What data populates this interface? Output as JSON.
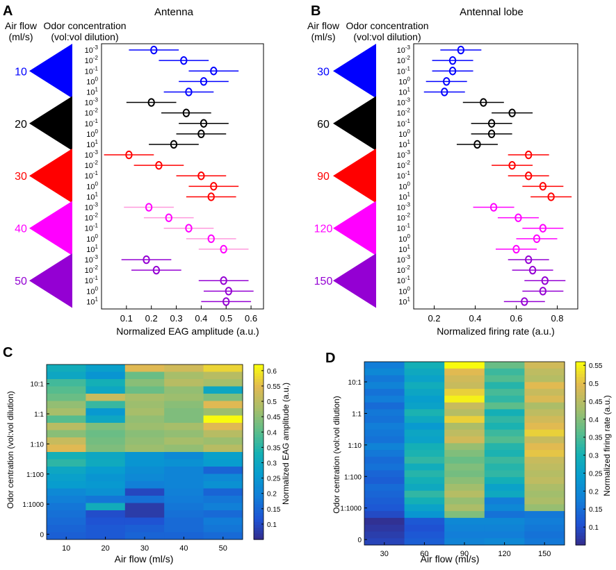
{
  "panel_letters": {
    "a": "A",
    "b": "B",
    "c": "C",
    "d": "D"
  },
  "headers": {
    "airflow_line1": "Air flow",
    "airflow_line2": "(ml/s)",
    "odor_line1": "Odor concentration",
    "odor_line2": "(vol:vol dilution)"
  },
  "colors": {
    "flow1": "#0000ff",
    "flow2": "#000000",
    "flow3": "#ff0000",
    "flow4": "#ff00ff",
    "flow5": "#9400d3",
    "flow4_light": "#ff99dd"
  },
  "conc_labels": [
    "10-3",
    "10-2",
    "10-1",
    "100",
    "101"
  ],
  "conc_base": "10",
  "conc_exponents": [
    "-3",
    "-2",
    "-1",
    "0",
    "1"
  ],
  "chart_data": [
    {
      "id": "A",
      "type": "scatter",
      "title": "Antenna",
      "xlabel": "Normalized EAG amplitude (a.u.)",
      "xlim": [
        0.0,
        0.65
      ],
      "xticks": [
        "0.1",
        "0.2",
        "0.3",
        "0.4",
        "0.5",
        "0.6"
      ],
      "flows": [
        "10",
        "20",
        "30",
        "40",
        "50"
      ],
      "series": [
        {
          "flow": "10",
          "means": [
            0.21,
            0.33,
            0.45,
            0.41,
            0.35
          ],
          "err": [
            0.1,
            0.1,
            0.1,
            0.1,
            0.1
          ]
        },
        {
          "flow": "20",
          "means": [
            0.2,
            0.34,
            0.41,
            0.4,
            0.29
          ],
          "err": [
            0.1,
            0.1,
            0.1,
            0.1,
            0.1
          ]
        },
        {
          "flow": "30",
          "means": [
            0.11,
            0.23,
            0.4,
            0.45,
            0.44
          ],
          "err": [
            0.1,
            0.1,
            0.1,
            0.1,
            0.1
          ]
        },
        {
          "flow": "40",
          "means": [
            0.19,
            0.27,
            0.35,
            0.44,
            0.49
          ],
          "err": [
            0.1,
            0.1,
            0.1,
            0.1,
            0.1
          ]
        },
        {
          "flow": "50",
          "means": [
            0.18,
            0.22,
            0.49,
            0.51,
            0.5
          ],
          "err": [
            0.1,
            0.1,
            0.1,
            0.1,
            0.1
          ]
        }
      ]
    },
    {
      "id": "B",
      "type": "scatter",
      "title": "Antennal lobe",
      "xlabel": "Normalized firing rate (a.u.)",
      "xlim": [
        0.1,
        0.9
      ],
      "xticks": [
        "0.2",
        "0.4",
        "0.6",
        "0.8"
      ],
      "flows": [
        "30",
        "60",
        "90",
        "120",
        "150"
      ],
      "series": [
        {
          "flow": "30",
          "means": [
            0.33,
            0.29,
            0.29,
            0.26,
            0.25
          ],
          "err": [
            0.1,
            0.1,
            0.1,
            0.1,
            0.1
          ]
        },
        {
          "flow": "60",
          "means": [
            0.44,
            0.58,
            0.48,
            0.48,
            0.41
          ],
          "err": [
            0.1,
            0.1,
            0.1,
            0.1,
            0.1
          ]
        },
        {
          "flow": "90",
          "means": [
            0.66,
            0.58,
            0.66,
            0.73,
            0.77
          ],
          "err": [
            0.1,
            0.1,
            0.1,
            0.1,
            0.1
          ]
        },
        {
          "flow": "120",
          "means": [
            0.49,
            0.61,
            0.73,
            0.7,
            0.6
          ],
          "err": [
            0.1,
            0.1,
            0.1,
            0.1,
            0.1
          ]
        },
        {
          "flow": "150",
          "means": [
            0.66,
            0.68,
            0.74,
            0.73,
            0.64
          ],
          "err": [
            0.1,
            0.1,
            0.1,
            0.1,
            0.1
          ]
        }
      ]
    },
    {
      "id": "C",
      "type": "heatmap",
      "xlabel": "Air flow (ml/s)",
      "ylabel": "Odor centration (vol:vol dilution)",
      "colorbar_label": "Normalized EAG amplitude (a.u.)",
      "x_categories": [
        "10",
        "20",
        "30",
        "40",
        "50"
      ],
      "y_tick_labels": [
        "10:1",
        "1:1",
        "1:10",
        "1:100",
        "1:1000",
        "0"
      ],
      "clim": [
        0.05,
        0.62
      ],
      "colorbar_ticks": [
        "0.1",
        "0.15",
        "0.2",
        "0.25",
        "0.3",
        "0.35",
        "0.4",
        "0.45",
        "0.5",
        "0.55",
        "0.6"
      ],
      "values": [
        [
          0.32,
          0.28,
          0.55,
          0.53,
          0.58
        ],
        [
          0.3,
          0.25,
          0.42,
          0.48,
          0.5
        ],
        [
          0.38,
          0.33,
          0.45,
          0.5,
          0.48
        ],
        [
          0.4,
          0.3,
          0.42,
          0.46,
          0.3
        ],
        [
          0.42,
          0.52,
          0.48,
          0.47,
          0.44
        ],
        [
          0.46,
          0.37,
          0.47,
          0.45,
          0.55
        ],
        [
          0.48,
          0.26,
          0.48,
          0.44,
          0.47
        ],
        [
          0.4,
          0.3,
          0.46,
          0.44,
          0.62
        ],
        [
          0.5,
          0.44,
          0.47,
          0.48,
          0.55
        ],
        [
          0.45,
          0.42,
          0.45,
          0.46,
          0.5
        ],
        [
          0.52,
          0.43,
          0.46,
          0.48,
          0.47
        ],
        [
          0.55,
          0.44,
          0.47,
          0.46,
          0.5
        ],
        [
          0.33,
          0.3,
          0.25,
          0.22,
          0.28
        ],
        [
          0.36,
          0.31,
          0.25,
          0.24,
          0.27
        ],
        [
          0.3,
          0.27,
          0.23,
          0.21,
          0.15
        ],
        [
          0.28,
          0.25,
          0.22,
          0.21,
          0.22
        ],
        [
          0.27,
          0.26,
          0.2,
          0.21,
          0.24
        ],
        [
          0.22,
          0.24,
          0.1,
          0.2,
          0.15
        ],
        [
          0.2,
          0.18,
          0.17,
          0.19,
          0.18
        ],
        [
          0.18,
          0.32,
          0.08,
          0.18,
          0.2
        ],
        [
          0.17,
          0.11,
          0.08,
          0.17,
          0.16
        ],
        [
          0.16,
          0.12,
          0.12,
          0.16,
          0.19
        ],
        [
          0.15,
          0.13,
          0.14,
          0.16,
          0.18
        ],
        [
          0.14,
          0.13,
          0.15,
          0.15,
          0.16
        ]
      ]
    },
    {
      "id": "D",
      "type": "heatmap",
      "xlabel": "Air flow (ml/s)",
      "ylabel": "Odor centration (vol:vol dilution)",
      "colorbar_label": "Normalized firing rate (a.u.)",
      "x_categories": [
        "30",
        "60",
        "90",
        "120",
        "150"
      ],
      "y_tick_labels": [
        "10:1",
        "1:1",
        "1:10",
        "1:100",
        "1:1000",
        "0"
      ],
      "clim": [
        0.05,
        0.56
      ],
      "colorbar_ticks": [
        "0.1",
        "0.15",
        "0.2",
        "0.25",
        "0.3",
        "0.35",
        "0.4",
        "0.45",
        "0.5",
        "0.55"
      ],
      "values": [
        [
          0.18,
          0.3,
          0.56,
          0.38,
          0.48
        ],
        [
          0.2,
          0.28,
          0.5,
          0.34,
          0.46
        ],
        [
          0.17,
          0.26,
          0.48,
          0.36,
          0.45
        ],
        [
          0.19,
          0.29,
          0.47,
          0.32,
          0.5
        ],
        [
          0.16,
          0.27,
          0.52,
          0.35,
          0.47
        ],
        [
          0.18,
          0.25,
          0.55,
          0.33,
          0.49
        ],
        [
          0.15,
          0.26,
          0.47,
          0.37,
          0.44
        ],
        [
          0.17,
          0.31,
          0.45,
          0.3,
          0.46
        ],
        [
          0.16,
          0.28,
          0.52,
          0.33,
          0.48
        ],
        [
          0.18,
          0.24,
          0.44,
          0.31,
          0.5
        ],
        [
          0.17,
          0.27,
          0.46,
          0.34,
          0.52
        ],
        [
          0.16,
          0.26,
          0.48,
          0.36,
          0.47
        ],
        [
          0.19,
          0.3,
          0.42,
          0.32,
          0.5
        ],
        [
          0.17,
          0.31,
          0.4,
          0.31,
          0.51
        ],
        [
          0.15,
          0.33,
          0.38,
          0.34,
          0.47
        ],
        [
          0.16,
          0.29,
          0.4,
          0.32,
          0.46
        ],
        [
          0.14,
          0.32,
          0.39,
          0.33,
          0.45
        ],
        [
          0.13,
          0.3,
          0.41,
          0.3,
          0.46
        ],
        [
          0.15,
          0.28,
          0.43,
          0.26,
          0.44
        ],
        [
          0.14,
          0.33,
          0.45,
          0.28,
          0.43
        ],
        [
          0.13,
          0.3,
          0.42,
          0.18,
          0.44
        ],
        [
          0.12,
          0.26,
          0.44,
          0.2,
          0.42
        ],
        [
          0.1,
          0.23,
          0.4,
          0.16,
          0.17
        ],
        [
          0.06,
          0.12,
          0.2,
          0.2,
          0.18
        ],
        [
          0.07,
          0.11,
          0.19,
          0.19,
          0.17
        ],
        [
          0.08,
          0.12,
          0.18,
          0.18,
          0.16
        ],
        [
          0.09,
          0.13,
          0.19,
          0.2,
          0.17
        ]
      ]
    }
  ]
}
